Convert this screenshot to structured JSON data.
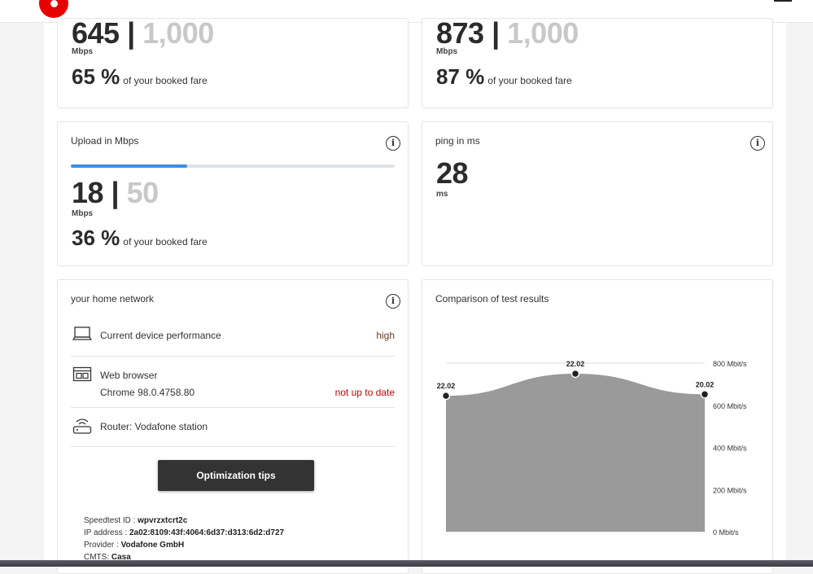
{
  "colors": {
    "brand": "#e60000",
    "progress": "#3d8ee0",
    "status_warning": "#cc0000",
    "chart_fill": "#9a9a9a"
  },
  "header": {
    "logo_icon": "vodafone-logo",
    "menu_icon": "hamburger-menu-icon"
  },
  "download_card": {
    "value": "645",
    "separator": " | ",
    "booked": "1,000",
    "unit": "Mbps",
    "percent": "65 %",
    "percent_text": "of your booked fare"
  },
  "wifi_card": {
    "value": "873",
    "separator": " | ",
    "booked": "1,000",
    "unit": "Mbps",
    "percent": "87 %",
    "percent_text": "of your booked fare"
  },
  "upload_card": {
    "title": "Upload in Mbps",
    "value": "18",
    "separator": " | ",
    "booked": "50",
    "unit": "Mbps",
    "percent": "36 %",
    "percent_text": "of your booked fare",
    "progress": 0.36
  },
  "ping_card": {
    "title": "ping in ms",
    "value": "28",
    "unit": "ms"
  },
  "home_network": {
    "title": "your home network",
    "device": {
      "label": "Current device performance",
      "value": "high",
      "icon": "laptop-icon"
    },
    "browser": {
      "label": "Web browser",
      "version": "Chrome 98.0.4758.80",
      "status": "not up to date",
      "icon": "browser-window-icon"
    },
    "router": {
      "label": "Router: Vodafone station",
      "icon": "router-icon"
    },
    "button_label": "Optimization tips",
    "meta": [
      {
        "label": "Speedtest ID : ",
        "value": "wpvrzxtcrt2c"
      },
      {
        "label": "IP address : ",
        "value": "2a02:8109:43f:4064:6d37:d313:6d2:d727"
      },
      {
        "label": "Provider : ",
        "value": "Vodafone GmbH"
      },
      {
        "label": "CMTS: ",
        "value": "Casa"
      }
    ]
  },
  "comparison": {
    "title": "Comparison of test results"
  },
  "chart_data": {
    "type": "area",
    "title": "Comparison of test results",
    "y_ticks": [
      "800 Mbit/s",
      "600 Mbit/s",
      "400 Mbit/s",
      "200 Mbit/s",
      "0 Mbit/s"
    ],
    "ylim": [
      0,
      800
    ],
    "points": [
      {
        "label": "22.02",
        "value": 645
      },
      {
        "label": "22.02",
        "value": 750
      },
      {
        "label": "20.02",
        "value": 652
      }
    ],
    "grid": true
  }
}
